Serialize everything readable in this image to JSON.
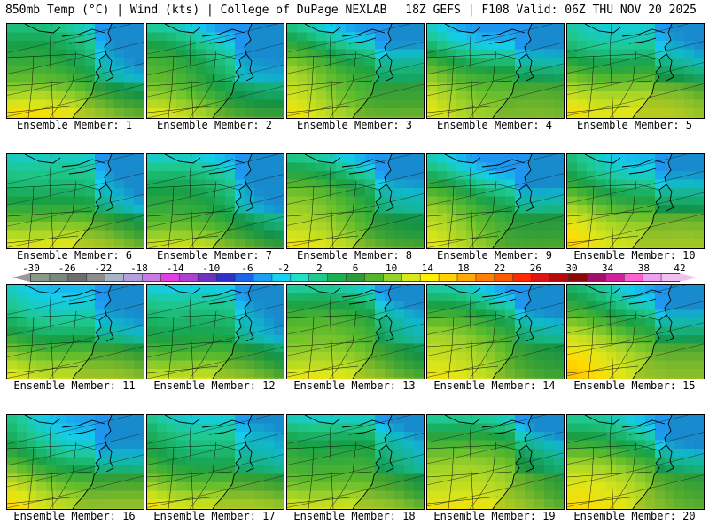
{
  "header": {
    "left": "850mb Temp (°C) | Wind (kts) | College of DuPage NEXLAB",
    "right": "18Z GEFS | F108 Valid: 06Z THU NOV 20 2025"
  },
  "colorbar": {
    "ticks": [
      "-30",
      "-26",
      "-22",
      "-18",
      "-14",
      "-10",
      "-6",
      "-2",
      "2",
      "6",
      "10",
      "14",
      "18",
      "22",
      "26",
      "30",
      "34",
      "38",
      "42"
    ],
    "colors": [
      "#8a9a8a",
      "#7a8a7a",
      "#6e6e6e",
      "#8c8c8c",
      "#a8b4c8",
      "#b4a0e0",
      "#c87ce6",
      "#e040e0",
      "#b040d0",
      "#7030c0",
      "#3030c8",
      "#1e64e6",
      "#1ea0f0",
      "#14d2f0",
      "#20e0c8",
      "#1ecb8c",
      "#18b050",
      "#2a9a3a",
      "#54b42a",
      "#96d02a",
      "#d8e81a",
      "#fff000",
      "#ffd200",
      "#ffaa00",
      "#ff8000",
      "#ff5a00",
      "#ff2a00",
      "#e01414",
      "#b40a0a",
      "#8c0808",
      "#a0106a",
      "#d020a0",
      "#ff60d0",
      "#f0a0f0",
      "#f0c0f0"
    ],
    "range_min": -30,
    "range_max": 42,
    "units": "°C"
  },
  "panels": [
    {
      "label": "Ensemble Member: 1",
      "cool": 0.55
    },
    {
      "label": "Ensemble Member: 2",
      "cool": 0.75
    },
    {
      "label": "Ensemble Member: 3",
      "cool": 0.5
    },
    {
      "label": "Ensemble Member: 4",
      "cool": 0.6
    },
    {
      "label": "Ensemble Member: 5",
      "cool": 0.45
    },
    {
      "label": "Ensemble Member: 6",
      "cool": 0.65
    },
    {
      "label": "Ensemble Member: 7",
      "cool": 0.8
    },
    {
      "label": "Ensemble Member: 8",
      "cool": 0.55
    },
    {
      "label": "Ensemble Member: 9",
      "cool": 0.7
    },
    {
      "label": "Ensemble Member: 10",
      "cool": 0.4
    },
    {
      "label": "Ensemble Member: 11",
      "cool": 0.7
    },
    {
      "label": "Ensemble Member: 12",
      "cool": 0.75
    },
    {
      "label": "Ensemble Member: 13",
      "cool": 0.5
    },
    {
      "label": "Ensemble Member: 14",
      "cool": 0.55
    },
    {
      "label": "Ensemble Member: 15",
      "cool": 0.35
    },
    {
      "label": "Ensemble Member: 16",
      "cool": 0.6
    },
    {
      "label": "Ensemble Member: 17",
      "cool": 0.55
    },
    {
      "label": "Ensemble Member: 18",
      "cool": 0.55
    },
    {
      "label": "Ensemble Member: 19",
      "cool": 0.35
    },
    {
      "label": "Ensemble Member: 20",
      "cool": 0.45
    }
  ]
}
